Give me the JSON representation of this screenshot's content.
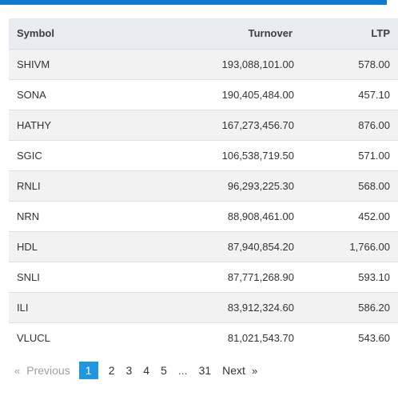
{
  "table": {
    "headers": {
      "symbol": "Symbol",
      "turnover": "Turnover",
      "ltp": "LTP"
    },
    "rows": [
      {
        "symbol": "SHIVM",
        "turnover": "193,088,101.00",
        "ltp": "578.00"
      },
      {
        "symbol": "SONA",
        "turnover": "190,405,484.00",
        "ltp": "457.10"
      },
      {
        "symbol": "HATHY",
        "turnover": "167,273,456.70",
        "ltp": "876.00"
      },
      {
        "symbol": "SGIC",
        "turnover": "106,538,719.50",
        "ltp": "571.00"
      },
      {
        "symbol": "RNLI",
        "turnover": "96,293,225.30",
        "ltp": "568.00"
      },
      {
        "symbol": "NRN",
        "turnover": "88,908,461.00",
        "ltp": "452.00"
      },
      {
        "symbol": "HDL",
        "turnover": "87,940,854.20",
        "ltp": "1,766.00"
      },
      {
        "symbol": "SNLI",
        "turnover": "87,771,268.90",
        "ltp": "593.10"
      },
      {
        "symbol": "ILI",
        "turnover": "83,912,324.60",
        "ltp": "586.20"
      },
      {
        "symbol": "VLUCL",
        "turnover": "81,021,543.70",
        "ltp": "543.60"
      }
    ]
  },
  "pagination": {
    "prev_arrow": "«",
    "prev_label": "Previous",
    "pages": [
      "1",
      "2",
      "3",
      "4",
      "5"
    ],
    "ellipsis": "...",
    "last_page": "31",
    "next_label": "Next",
    "next_arrow": "»",
    "current": "1"
  }
}
